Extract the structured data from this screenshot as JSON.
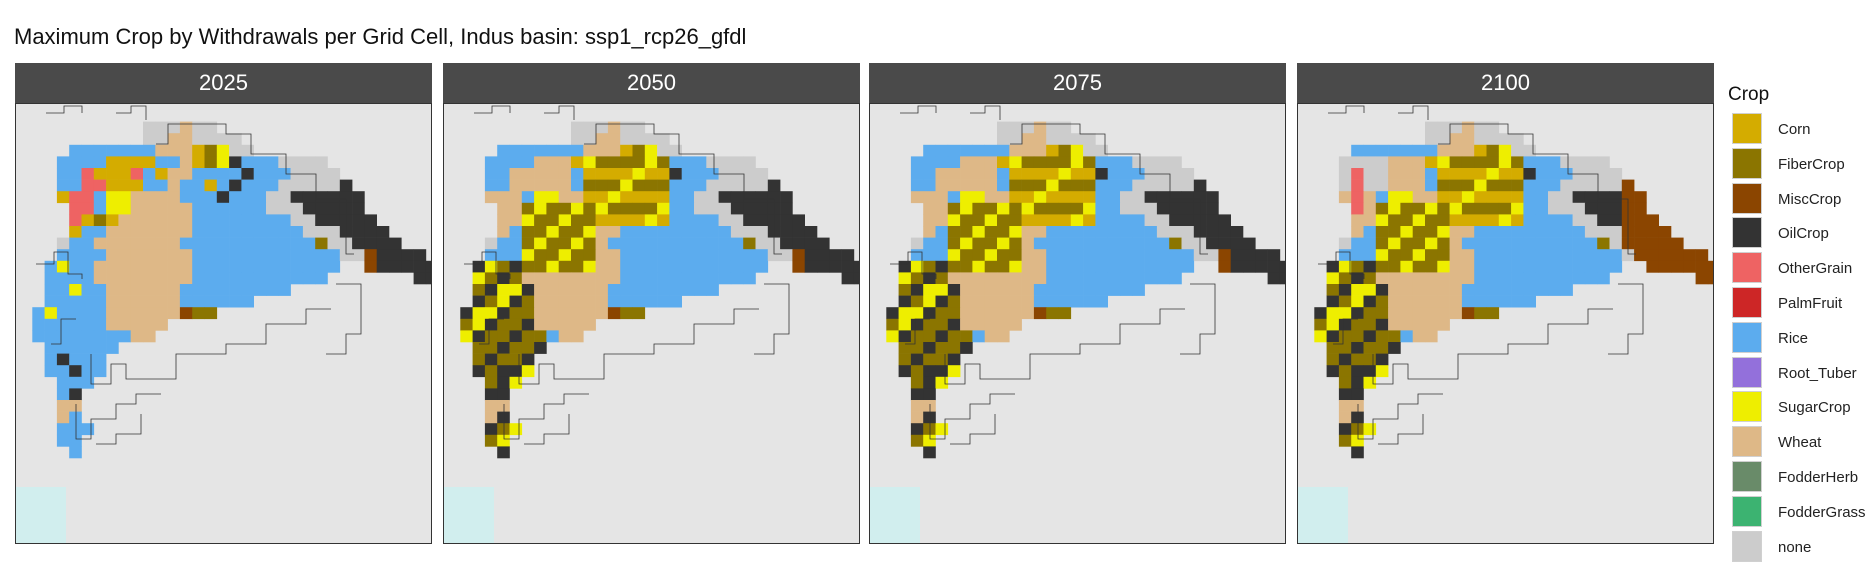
{
  "title": "Maximum Crop by Withdrawals per Grid Cell, Indus basin: ssp1_rcp26_gfdl",
  "legend": {
    "title": "Crop",
    "items": [
      {
        "label": "Corn",
        "color": "#d4ac00"
      },
      {
        "label": "FiberCrop",
        "color": "#8b7500"
      },
      {
        "label": "MiscCrop",
        "color": "#8b4500"
      },
      {
        "label": "OilCrop",
        "color": "#333333"
      },
      {
        "label": "OtherGrain",
        "color": "#ee6363"
      },
      {
        "label": "PalmFruit",
        "color": "#cd2626"
      },
      {
        "label": "Rice",
        "color": "#5cacee"
      },
      {
        "label": "Root_Tuber",
        "color": "#9370db"
      },
      {
        "label": "SugarCrop",
        "color": "#eeee00"
      },
      {
        "label": "Wheat",
        "color": "#deb887"
      },
      {
        "label": "FodderHerb",
        "color": "#698b69"
      },
      {
        "label": "FodderGrass",
        "color": "#3cb371"
      },
      {
        "label": "none",
        "color": "#cccccc"
      }
    ]
  },
  "panels": [
    {
      "year": "2025"
    },
    {
      "year": "2050"
    },
    {
      "year": "2075"
    },
    {
      "year": "2100"
    }
  ],
  "map_colors": {
    "background": "#e5e5e5",
    "water": "#d1eeee",
    "boundary": "#333333"
  }
}
